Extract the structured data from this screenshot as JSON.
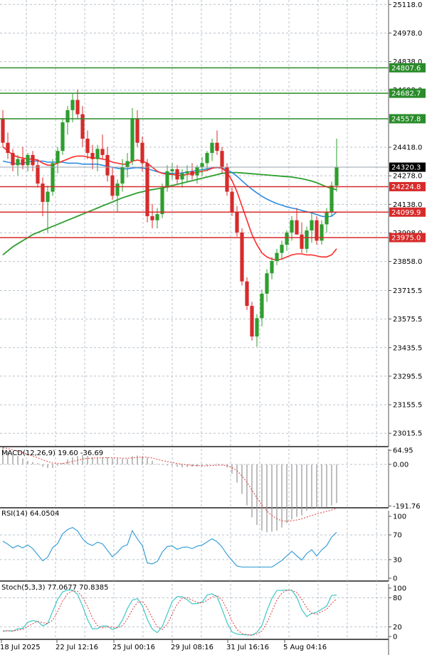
{
  "chart_data": {
    "type": "candlestick",
    "colors": {
      "bull": "#2e9e2e",
      "bear": "#d62b2b",
      "ma_fast": "#ff2a2a",
      "ma_mid": "#2e8be0",
      "ma_slow": "#2e9e2e",
      "h_green": "#2a8c2a",
      "h_red": "#d62b2b",
      "grid": "#b9c2cc",
      "frame": "#555555",
      "signal": "#e03c3c",
      "rsi": "#3aa0d8",
      "stoch_k": "#3fc7c7",
      "stoch_d": "#e03c3c"
    },
    "price_axis": {
      "ymin": 22950,
      "ymax": 25140,
      "ticks": [
        "25118.0",
        "24978.0",
        "24838.0",
        "24698.0",
        "24418.0",
        "24278.0",
        "24138.0",
        "23998.0",
        "23858.0",
        "23715.5",
        "23575.5",
        "23435.5",
        "23295.5",
        "23155.5",
        "23015.5"
      ]
    },
    "level_lines": [
      {
        "label": "24807.6",
        "value": 24807.6,
        "color": "green"
      },
      {
        "label": "24682.7",
        "value": 24682.7,
        "color": "green"
      },
      {
        "label": "24557.8",
        "value": 24557.8,
        "color": "green"
      },
      {
        "label": "24224.8",
        "value": 24224.8,
        "color": "red"
      },
      {
        "label": "24099.9",
        "value": 24099.9,
        "color": "red"
      },
      {
        "label": "23975.0",
        "value": 23975.0,
        "color": "red"
      }
    ],
    "current_price": {
      "label": "24320.3",
      "value": 24320.3
    },
    "x_labels": [
      "18 Jul 2025",
      "22 Jul 12:16",
      "25 Jul 00:16",
      "29 Jul 08:16",
      "31 Jul 16:16",
      "5 Aug 04:16"
    ],
    "candles": [
      [
        24560,
        24600,
        24420,
        24440
      ],
      [
        24440,
        24490,
        24360,
        24390
      ],
      [
        24390,
        24410,
        24300,
        24330
      ],
      [
        24330,
        24380,
        24280,
        24360
      ],
      [
        24360,
        24420,
        24310,
        24330
      ],
      [
        24330,
        24390,
        24300,
        24380
      ],
      [
        24380,
        24400,
        24300,
        24330
      ],
      [
        24330,
        24360,
        24220,
        24240
      ],
      [
        24240,
        24270,
        24080,
        24150
      ],
      [
        24150,
        24230,
        24000,
        24200
      ],
      [
        24200,
        24360,
        24180,
        24340
      ],
      [
        24340,
        24420,
        24290,
        24400
      ],
      [
        24400,
        24560,
        24380,
        24540
      ],
      [
        24540,
        24620,
        24480,
        24600
      ],
      [
        24600,
        24680,
        24540,
        24650
      ],
      [
        24650,
        24700,
        24560,
        24580
      ],
      [
        24580,
        24620,
        24420,
        24460
      ],
      [
        24460,
        24500,
        24360,
        24390
      ],
      [
        24390,
        24430,
        24310,
        24360
      ],
      [
        24360,
        24430,
        24300,
        24410
      ],
      [
        24410,
        24480,
        24360,
        24380
      ],
      [
        24380,
        24420,
        24250,
        24280
      ],
      [
        24280,
        24320,
        24160,
        24180
      ],
      [
        24180,
        24260,
        24100,
        24240
      ],
      [
        24240,
        24360,
        24200,
        24320
      ],
      [
        24320,
        24390,
        24270,
        24350
      ],
      [
        24350,
        24610,
        24330,
        24560
      ],
      [
        24560,
        24600,
        24420,
        24440
      ],
      [
        24440,
        24470,
        24300,
        24340
      ],
      [
        24340,
        24360,
        24050,
        24080
      ],
      [
        24080,
        24140,
        24020,
        24060
      ],
      [
        24060,
        24120,
        24020,
        24090
      ],
      [
        24090,
        24240,
        24070,
        24220
      ],
      [
        24220,
        24330,
        24200,
        24300
      ],
      [
        24300,
        24340,
        24260,
        24310
      ],
      [
        24310,
        24330,
        24240,
        24260
      ],
      [
        24260,
        24310,
        24220,
        24290
      ],
      [
        24290,
        24330,
        24250,
        24300
      ],
      [
        24300,
        24340,
        24260,
        24280
      ],
      [
        24280,
        24330,
        24240,
        24320
      ],
      [
        24320,
        24370,
        24280,
        24340
      ],
      [
        24340,
        24400,
        24300,
        24390
      ],
      [
        24390,
        24460,
        24350,
        24440
      ],
      [
        24440,
        24500,
        24380,
        24400
      ],
      [
        24400,
        24420,
        24290,
        24320
      ],
      [
        24320,
        24340,
        24180,
        24200
      ],
      [
        24200,
        24220,
        24080,
        24100
      ],
      [
        24100,
        24130,
        23980,
        24000
      ],
      [
        24000,
        24020,
        23740,
        23760
      ],
      [
        23760,
        23780,
        23620,
        23640
      ],
      [
        23640,
        23660,
        23470,
        23490
      ],
      [
        23490,
        23600,
        23440,
        23580
      ],
      [
        23580,
        23720,
        23540,
        23700
      ],
      [
        23700,
        23820,
        23660,
        23800
      ],
      [
        23800,
        23880,
        23770,
        23860
      ],
      [
        23860,
        23920,
        23840,
        23900
      ],
      [
        23900,
        23960,
        23870,
        23940
      ],
      [
        23940,
        24010,
        23910,
        24000
      ],
      [
        24000,
        24080,
        23960,
        24060
      ],
      [
        24060,
        24120,
        23990,
        23990
      ],
      [
        23990,
        24050,
        23900,
        23920
      ],
      [
        23920,
        24030,
        23900,
        24010
      ],
      [
        24010,
        24100,
        23950,
        24060
      ],
      [
        24060,
        24080,
        23940,
        23960
      ],
      [
        23960,
        24060,
        23940,
        24040
      ],
      [
        24040,
        24120,
        24000,
        24100
      ],
      [
        24100,
        24250,
        24080,
        24230
      ],
      [
        24230,
        24460,
        24200,
        24320
      ]
    ],
    "ma_fast": [
      24420,
      24400,
      24380,
      24370,
      24365,
      24360,
      24360,
      24355,
      24340,
      24330,
      24330,
      24340,
      24350,
      24360,
      24370,
      24375,
      24375,
      24370,
      24365,
      24365,
      24360,
      24355,
      24345,
      24340,
      24335,
      24335,
      24350,
      24355,
      24350,
      24340,
      24320,
      24300,
      24290,
      24285,
      24285,
      24280,
      24280,
      24285,
      24290,
      24295,
      24300,
      24305,
      24315,
      24320,
      24315,
      24295,
      24255,
      24200,
      24130,
      24060,
      23990,
      23940,
      23900,
      23880,
      23870,
      23865,
      23870,
      23880,
      23890,
      23895,
      23895,
      23890,
      23890,
      23885,
      23880,
      23880,
      23890,
      23920
    ],
    "ma_mid": [
      24350,
      24345,
      24340,
      24335,
      24340,
      24345,
      24350,
      24350,
      24350,
      24345,
      24345,
      24345,
      24345,
      24340,
      24340,
      24340,
      24335,
      24335,
      24335,
      24335,
      24330,
      24325,
      24320,
      24315,
      24312,
      24312,
      24316,
      24318,
      24316,
      24312,
      24305,
      24298,
      24292,
      24290,
      24290,
      24290,
      24292,
      24296,
      24300,
      24304,
      24308,
      24312,
      24316,
      24318,
      24316,
      24308,
      24294,
      24276,
      24254,
      24232,
      24212,
      24194,
      24178,
      24164,
      24152,
      24142,
      24134,
      24126,
      24120,
      24115,
      24108,
      24102,
      24096,
      24088,
      24080,
      24076,
      24080,
      24100
    ],
    "ma_slow": [
      23890,
      23910,
      23930,
      23945,
      23960,
      23975,
      23990,
      24000,
      24010,
      24020,
      24030,
      24040,
      24050,
      24060,
      24070,
      24080,
      24090,
      24100,
      24110,
      24120,
      24130,
      24140,
      24150,
      24160,
      24170,
      24178,
      24186,
      24194,
      24200,
      24206,
      24210,
      24214,
      24218,
      24224,
      24230,
      24236,
      24242,
      24248,
      24254,
      24260,
      24266,
      24272,
      24278,
      24284,
      24290,
      24292,
      24294,
      24294,
      24292,
      24290,
      24288,
      24286,
      24284,
      24282,
      24280,
      24278,
      24276,
      24274,
      24272,
      24268,
      24264,
      24258,
      24252,
      24244,
      24234,
      24224,
      24216,
      24210
    ],
    "macd": {
      "title": "MACD(12,26,9) 19.60 -36.69",
      "ticks": [
        "64.95",
        "0.00",
        "-191.76"
      ],
      "ymin": -200,
      "ymax": 72
    },
    "rsi": {
      "title": "RSI(14) 64.0504",
      "ticks": [
        "100",
        "70",
        "30",
        "0"
      ],
      "ymin": 0,
      "ymax": 100
    },
    "stoch": {
      "title": "Stoch(5,3,3) 77.0677 70.8385",
      "ticks": [
        "100",
        "80",
        "20",
        "0"
      ],
      "ymin": 0,
      "ymax": 100
    }
  }
}
